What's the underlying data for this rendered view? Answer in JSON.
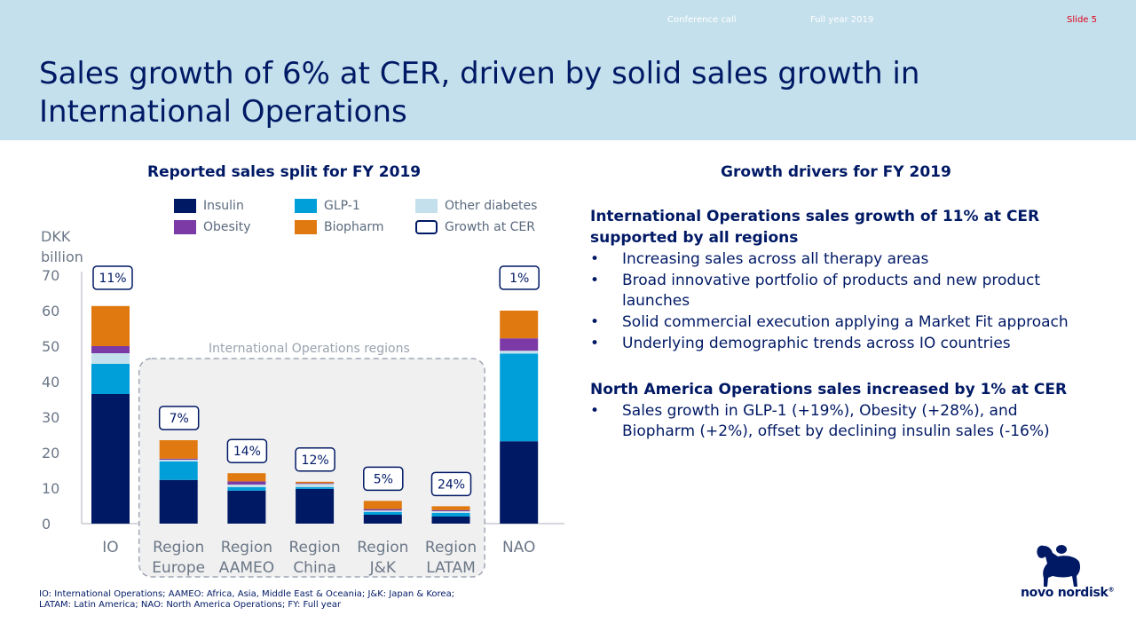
{
  "header": {
    "conference": "Conference call",
    "period": "Full year 2019",
    "slide": "Slide 5",
    "title_line1": "Sales growth of 6% at CER, driven by solid sales growth in",
    "title_line2": "International Operations"
  },
  "left": {
    "subtitle": "Reported sales split for FY 2019",
    "ylabel_line1": "DKK",
    "ylabel_line2": "billion",
    "region_group_label": "International Operations regions"
  },
  "legend": [
    {
      "name": "Insulin",
      "color": "#001965"
    },
    {
      "name": "GLP-1",
      "color": "#009fda"
    },
    {
      "name": "Other diabetes",
      "color": "#c4e0ec"
    },
    {
      "name": "Obesity",
      "color": "#7b3aa6"
    },
    {
      "name": "Biopharm",
      "color": "#e07a10"
    },
    {
      "name": "Growth at CER",
      "color": "#ffffff"
    }
  ],
  "chart_data": {
    "type": "bar",
    "stacked": true,
    "categories": [
      {
        "line1": "IO",
        "line2": ""
      },
      {
        "line1": "Region",
        "line2": "Europe"
      },
      {
        "line1": "Region",
        "line2": "AAMEO"
      },
      {
        "line1": "Region",
        "line2": "China"
      },
      {
        "line1": "Region",
        "line2": "J&K"
      },
      {
        "line1": "Region",
        "line2": "LATAM"
      },
      {
        "line1": "NAO",
        "line2": ""
      }
    ],
    "series": [
      {
        "name": "Insulin",
        "values": [
          36.5,
          12.3,
          9.3,
          9.8,
          2.5,
          2.0,
          23.2
        ]
      },
      {
        "name": "GLP-1",
        "values": [
          8.5,
          5.2,
          1.0,
          0.5,
          0.8,
          1.0,
          24.7
        ]
      },
      {
        "name": "Other diabetes",
        "values": [
          3.0,
          0.5,
          0.7,
          0.9,
          0.4,
          0.5,
          0.8
        ]
      },
      {
        "name": "Obesity",
        "values": [
          2.0,
          0.3,
          0.9,
          0.2,
          0.4,
          0.3,
          3.5
        ]
      },
      {
        "name": "Biopharm",
        "values": [
          11.3,
          5.2,
          2.3,
          0.4,
          2.3,
          1.1,
          7.8
        ]
      }
    ],
    "growth_labels": [
      "11%",
      "7%",
      "14%",
      "12%",
      "5%",
      "24%",
      "1%"
    ],
    "ylim": [
      0,
      70
    ],
    "yticks": [
      0,
      10,
      20,
      30,
      40,
      50,
      60,
      70
    ]
  },
  "right": {
    "subtitle": "Growth drivers for FY 2019",
    "io_heading": "International Operations sales growth of 11% at CER supported by all regions",
    "io_bullets": [
      "Increasing sales across all therapy areas",
      "Broad innovative portfolio of products and new product launches",
      "Solid commercial execution applying a Market Fit approach",
      "Underlying demographic trends across IO countries"
    ],
    "na_heading": "North America Operations sales increased by 1% at CER",
    "na_bullets": [
      "Sales growth in GLP-1 (+19%), Obesity (+28%), and Biopharm (+2%), offset by declining insulin sales (-16%)"
    ],
    "bullet_symbol": "•"
  },
  "footnote": {
    "line1": "IO: International Operations; AAMEO: Africa, Asia, Middle East & Oceania; J&K: Japan & Korea;",
    "line2": "LATAM: Latin America; NAO: North America Operations; FY: Full year"
  },
  "logo": {
    "text": "novo nordisk",
    "mark": "®",
    "icon": "apis-bull-icon"
  }
}
